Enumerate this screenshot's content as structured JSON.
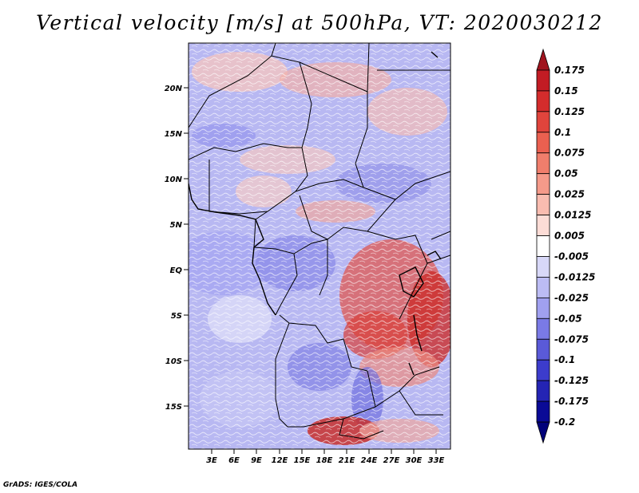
{
  "title": "Vertical velocity [m/s] at 500hPa, VT: 2020030212",
  "credit": "GrADS: IGES/COLA",
  "map": {
    "lat_labels": [
      "20N",
      "15N",
      "10N",
      "5N",
      "EQ",
      "5S",
      "10S",
      "15S"
    ],
    "lon_labels": [
      "3E",
      "6E",
      "9E",
      "12E",
      "15E",
      "18E",
      "21E",
      "24E",
      "27E",
      "30E",
      "33E"
    ]
  },
  "colorbar": {
    "labels": [
      "0.175",
      "0.15",
      "0.125",
      "0.1",
      "0.075",
      "0.05",
      "0.025",
      "0.0125",
      "0.005",
      "-0.005",
      "-0.0125",
      "-0.025",
      "-0.05",
      "-0.075",
      "-0.1",
      "-0.125",
      "-0.175",
      "-0.2"
    ],
    "colors": [
      "#a0141e",
      "#c21c24",
      "#d42c2c",
      "#e0443c",
      "#ea6050",
      "#f07e6c",
      "#f59a8a",
      "#f9bcb0",
      "#fcdcd6",
      "#ffffff",
      "#d8d8f8",
      "#bcbcf4",
      "#a0a0f0",
      "#7a7ae6",
      "#5a5ad8",
      "#3c3ccc",
      "#2424b4",
      "#0a0a96",
      "#02027a"
    ]
  }
}
